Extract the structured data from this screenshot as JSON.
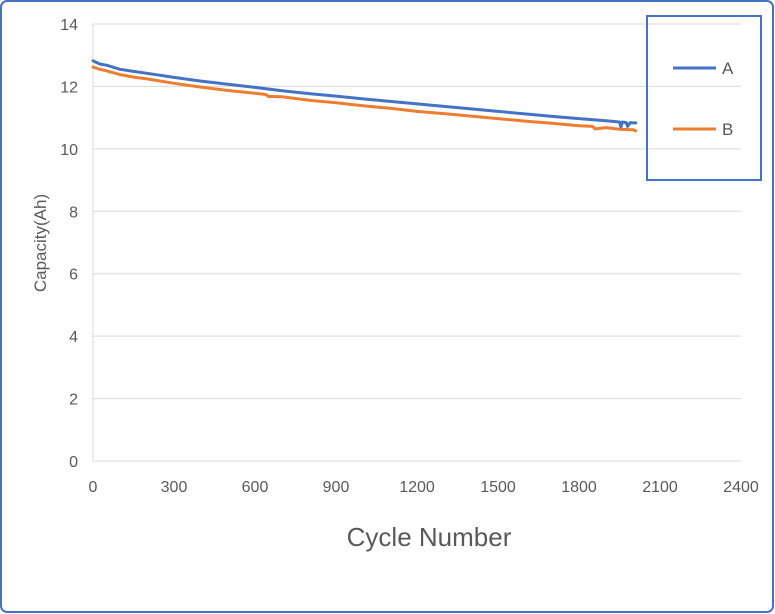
{
  "chart_data": {
    "type": "line",
    "xlabel": "Cycle Number",
    "ylabel": "Capacity(Ah)",
    "xlim": [
      0,
      2400
    ],
    "ylim": [
      0,
      14
    ],
    "x_ticks": [
      "0",
      "300",
      "600",
      "900",
      "1200",
      "1500",
      "1800",
      "2100",
      "2400"
    ],
    "y_ticks": [
      "0",
      "2",
      "4",
      "6",
      "8",
      "10",
      "12",
      "14"
    ],
    "grid": "horizontal",
    "legend_position": "top-right",
    "series": [
      {
        "name": "A",
        "color": "#4472C4",
        "x": [
          0,
          25,
          50,
          100,
          150,
          200,
          300,
          400,
          500,
          600,
          700,
          800,
          900,
          1000,
          1100,
          1200,
          1300,
          1400,
          1500,
          1600,
          1700,
          1800,
          1900,
          1950,
          1955,
          1960,
          1975,
          1980,
          1990,
          2000,
          2010
        ],
        "values": [
          12.82,
          12.72,
          12.68,
          12.55,
          12.48,
          12.42,
          12.29,
          12.17,
          12.07,
          11.97,
          11.86,
          11.77,
          11.69,
          11.6,
          11.52,
          11.44,
          11.36,
          11.28,
          11.2,
          11.12,
          11.04,
          10.97,
          10.9,
          10.86,
          10.7,
          10.86,
          10.84,
          10.72,
          10.84,
          10.83,
          10.83
        ]
      },
      {
        "name": "B",
        "color": "#ED7D31",
        "x": [
          0,
          25,
          50,
          100,
          150,
          200,
          300,
          400,
          500,
          600,
          640,
          650,
          700,
          800,
          900,
          1000,
          1100,
          1200,
          1300,
          1400,
          1500,
          1600,
          1700,
          1800,
          1850,
          1860,
          1900,
          1950,
          2000,
          2010
        ],
        "values": [
          12.62,
          12.55,
          12.5,
          12.38,
          12.3,
          12.24,
          12.1,
          11.98,
          11.87,
          11.78,
          11.74,
          11.68,
          11.67,
          11.56,
          11.48,
          11.38,
          11.3,
          11.2,
          11.13,
          11.05,
          10.97,
          10.89,
          10.82,
          10.74,
          10.72,
          10.64,
          10.68,
          10.63,
          10.61,
          10.58
        ]
      }
    ]
  }
}
